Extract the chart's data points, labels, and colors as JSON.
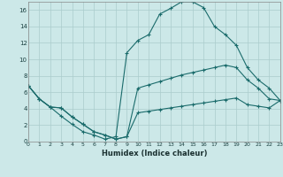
{
  "xlabel": "Humidex (Indice chaleur)",
  "background_color": "#cce8e8",
  "grid_color": "#aacccc",
  "line_color": "#1a6b6b",
  "x_min": 0,
  "x_max": 23,
  "y_min": 0,
  "y_max": 17,
  "yticks": [
    0,
    2,
    4,
    6,
    8,
    10,
    12,
    14,
    16
  ],
  "curve_top_x": [
    0,
    1,
    2,
    3,
    4,
    5,
    6,
    7,
    8,
    9,
    10,
    11,
    12,
    13,
    14,
    15,
    16,
    17,
    18,
    19,
    20,
    21,
    22,
    23
  ],
  "curve_top_y": [
    6.8,
    5.2,
    4.2,
    3.1,
    2.1,
    1.2,
    0.8,
    0.3,
    0.6,
    10.8,
    12.3,
    13.0,
    15.5,
    16.2,
    17.0,
    17.0,
    16.3,
    14.0,
    13.0,
    11.7,
    9.0,
    7.5,
    6.5,
    5.0
  ],
  "curve_mid_x": [
    0,
    1,
    2,
    3,
    4,
    5,
    6,
    7,
    8,
    9,
    10,
    11,
    12,
    13,
    14,
    15,
    16,
    17,
    18,
    19,
    20,
    21,
    22,
    23
  ],
  "curve_mid_y": [
    6.8,
    5.2,
    4.2,
    4.1,
    3.0,
    2.1,
    1.2,
    0.8,
    0.3,
    0.6,
    6.5,
    6.9,
    7.3,
    7.7,
    8.1,
    8.4,
    8.7,
    9.0,
    9.3,
    9.0,
    7.5,
    6.5,
    5.2,
    5.0
  ],
  "curve_low_x": [
    0,
    1,
    2,
    3,
    4,
    5,
    6,
    7,
    8,
    9,
    10,
    11,
    12,
    13,
    14,
    15,
    16,
    17,
    18,
    19,
    20,
    21,
    22,
    23
  ],
  "curve_low_y": [
    6.8,
    5.2,
    4.2,
    4.1,
    3.0,
    2.1,
    1.2,
    0.8,
    0.3,
    0.6,
    3.5,
    3.7,
    3.9,
    4.1,
    4.3,
    4.5,
    4.7,
    4.9,
    5.1,
    5.3,
    4.5,
    4.3,
    4.1,
    5.0
  ]
}
